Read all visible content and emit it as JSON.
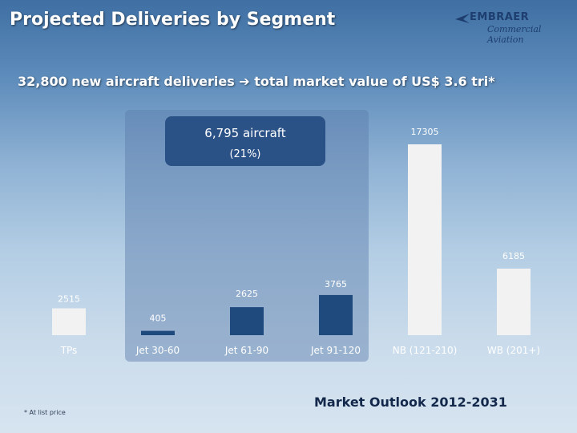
{
  "slide": {
    "title": "Projected Deliveries by Segment",
    "subtitle": "32,800 new aircraft deliveries ➔ total market value of US$ 3.6 tri*",
    "footnote": "* At list price",
    "outlook": "Market Outlook 2012-2031"
  },
  "logo": {
    "brand": "EMBRAER",
    "sub": "Commercial Aviation",
    "icon": "embraer-logo-icon"
  },
  "callout": {
    "main": "6,795 aircraft",
    "pct": "(21%)"
  },
  "colors": {
    "light_bar": "#f2f2f2",
    "dark_bar": "#1f4a7e",
    "callout": "#2b5287",
    "highlight_band": "#5a7daa"
  },
  "chart_data": {
    "type": "bar",
    "title": "Projected Deliveries by Segment",
    "xlabel": "",
    "ylabel": "",
    "ylim": [
      0,
      17305
    ],
    "categories": [
      "TPs",
      "Jet 30-60",
      "Jet 61-90",
      "Jet 91-120",
      "NB (121-210)",
      "WB (201+)"
    ],
    "values": [
      2515,
      405,
      2625,
      3765,
      17305,
      6185
    ],
    "highlighted": [
      false,
      true,
      true,
      true,
      false,
      false
    ],
    "grid": false
  }
}
